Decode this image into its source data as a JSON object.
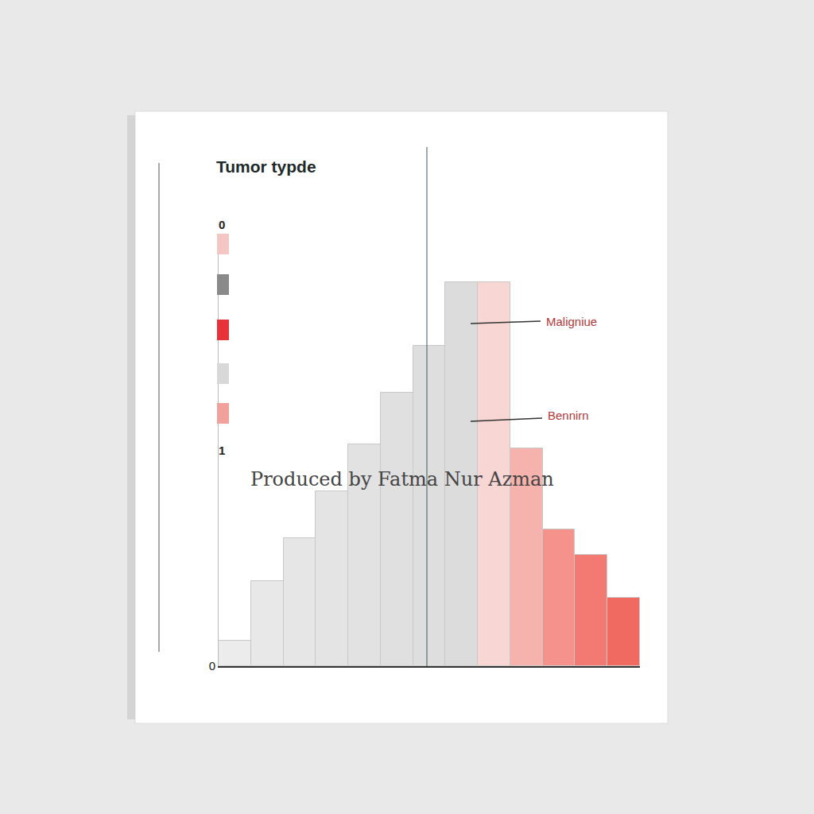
{
  "chart_data": {
    "type": "bar",
    "title": "Tumor typde",
    "categories": [
      null,
      null,
      null,
      null,
      null,
      null,
      null,
      null,
      null,
      null,
      null,
      null,
      null
    ],
    "values": [
      0.06,
      0.2,
      0.3,
      0.41,
      0.52,
      0.64,
      0.75,
      0.9,
      0.9,
      0.51,
      0.32,
      0.26,
      0.16
    ],
    "colors": [
      "#ececec",
      "#e8e8e8",
      "#e6e6e6",
      "#e4e4e4",
      "#e2e2e2",
      "#e0e0e0",
      "#dedede",
      "#dcdcdc",
      "#f8d6d4",
      "#f6b3ae",
      "#f4928b",
      "#f27a72",
      "#f06a62"
    ],
    "ylim": [
      0,
      1
    ],
    "yticks": [
      0
    ],
    "grid": false,
    "annotations": [
      "Maligniue",
      "Bennirn",
      "Produced by Fatma Nur Azman"
    ],
    "colorbar": {
      "range": [
        0,
        1
      ],
      "colors": [
        "#f4c6c4",
        "#8a8a8a",
        "#e8323a",
        "#d8d8d8",
        "#f2a09a"
      ]
    }
  }
}
